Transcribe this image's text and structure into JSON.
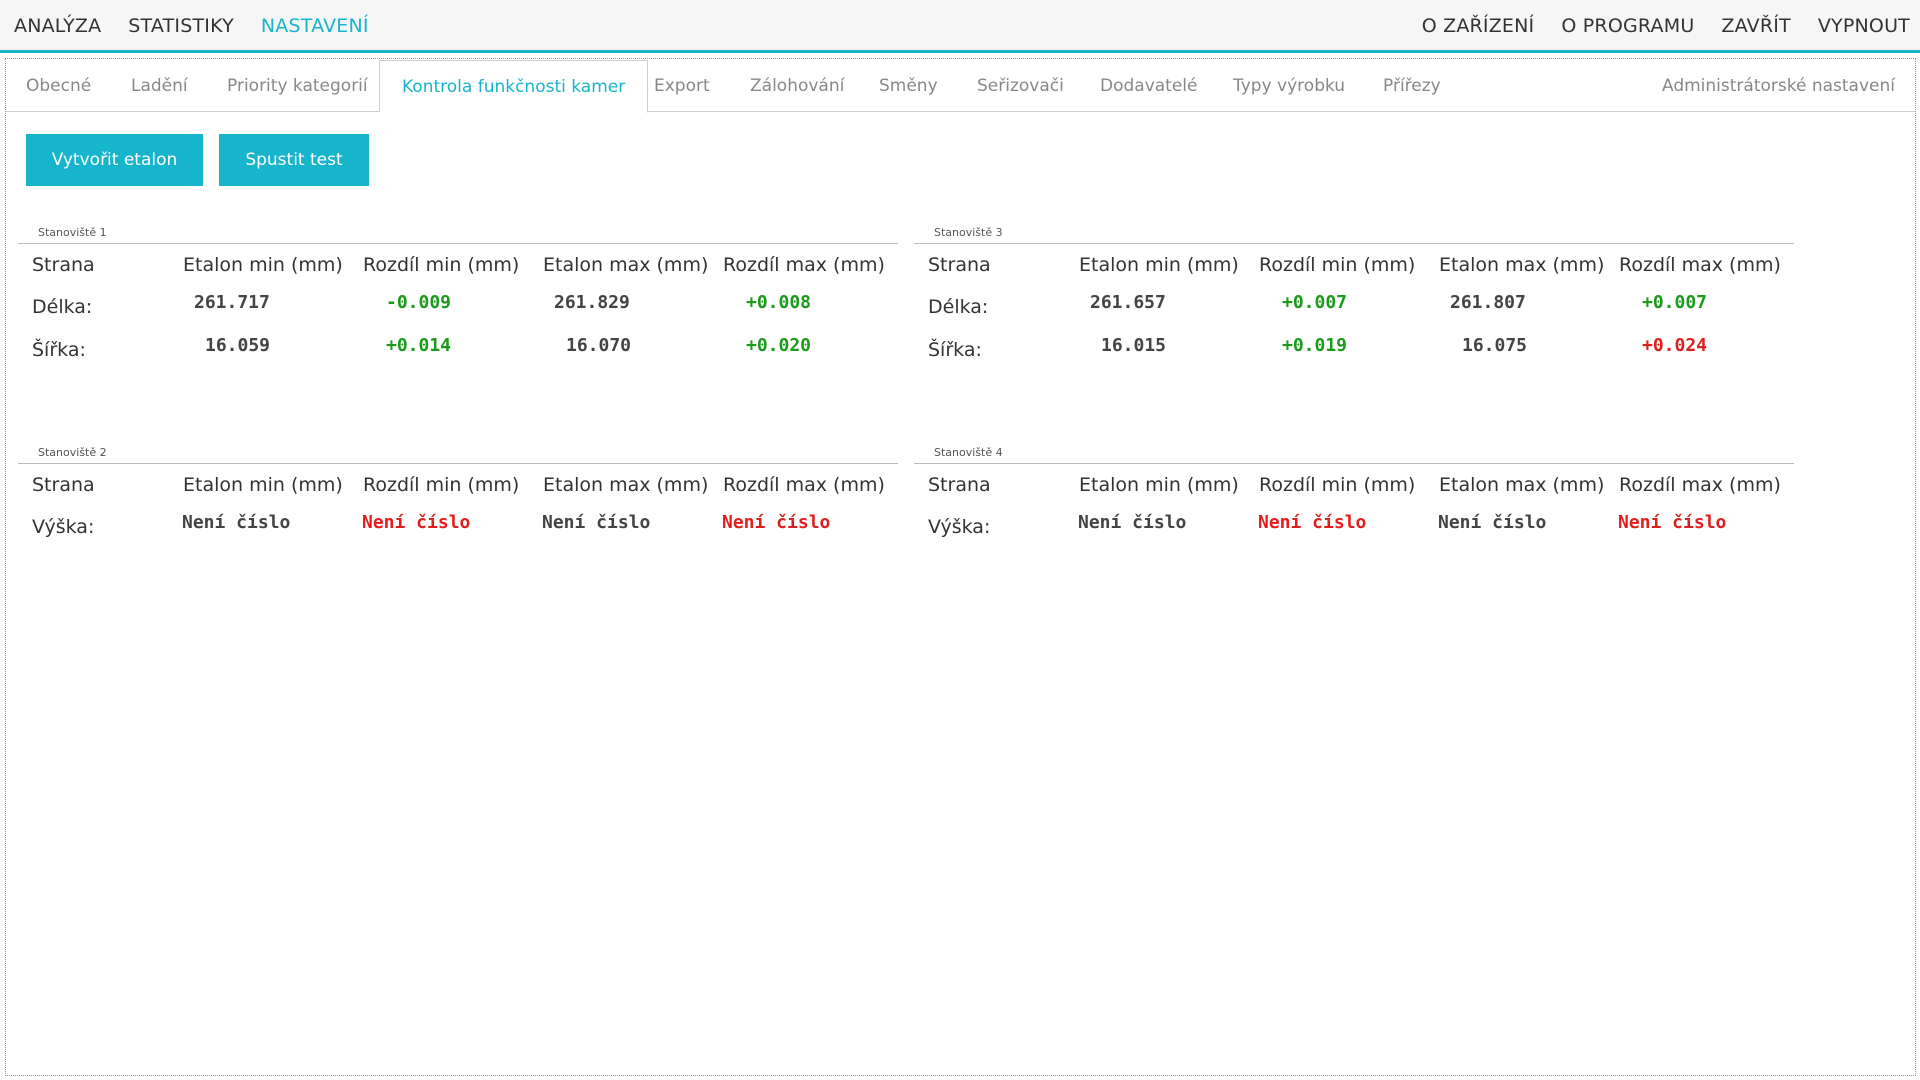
{
  "top_nav": {
    "left": [
      "ANALÝZA",
      "STATISTIKY",
      "NASTAVENÍ"
    ],
    "right": [
      "O ZAŘÍZENÍ",
      "O PROGRAMU",
      "ZAVŘÍT",
      "VYPNOUT"
    ],
    "active": "NASTAVENÍ"
  },
  "tabs": {
    "items": [
      "Obecné",
      "Ladění",
      "Priority kategorií",
      "Kontrola funkčnosti kamer",
      "Export",
      "Zálohování",
      "Směny",
      "Seřizovači",
      "Dodavatelé",
      "Typy výrobku",
      "Přířezy"
    ],
    "admin": "Administrátorské nastavení",
    "active": "Kontrola funkčnosti kamer"
  },
  "actions": {
    "create_etalon": "Vytvořit etalon",
    "run_test": "Spustit test"
  },
  "columns": [
    "Strana",
    "Etalon min (mm)",
    "Rozdíl min (mm)",
    "Etalon max (mm)",
    "Rozdíl max (mm)"
  ],
  "stations": [
    {
      "title": "Stanoviště 1",
      "rows": [
        {
          "label": "Délka:",
          "etalon_min": "261.717",
          "diff_min": "-0.009",
          "etalon_max": "261.829",
          "diff_max": "+0.008"
        },
        {
          "label": "Šířka:",
          "etalon_min": "16.059",
          "diff_min": "+0.014",
          "etalon_max": "16.070",
          "diff_max": "+0.020"
        }
      ]
    },
    {
      "title": "Stanoviště 3",
      "rows": [
        {
          "label": "Délka:",
          "etalon_min": "261.657",
          "diff_min": "+0.007",
          "etalon_max": "261.807",
          "diff_max": "+0.007"
        },
        {
          "label": "Šířka:",
          "etalon_min": "16.015",
          "diff_min": "+0.019",
          "etalon_max": "16.075",
          "diff_max": "+0.024"
        }
      ]
    },
    {
      "title": "Stanoviště 2",
      "rows": [
        {
          "label": "Výška:",
          "etalon_min": "Není číslo",
          "diff_min": "Není číslo",
          "etalon_max": "Není číslo",
          "diff_max": "Není číslo"
        }
      ]
    },
    {
      "title": "Stanoviště 4",
      "rows": [
        {
          "label": "Výška:",
          "etalon_min": "Není číslo",
          "diff_min": "Není číslo",
          "etalon_max": "Není číslo",
          "diff_max": "Není číslo"
        }
      ]
    }
  ],
  "colors": {
    "accent": "#17b5cc",
    "ok": "#1a9b1a",
    "error": "#e01e1e",
    "neutral_value": "#444444"
  }
}
